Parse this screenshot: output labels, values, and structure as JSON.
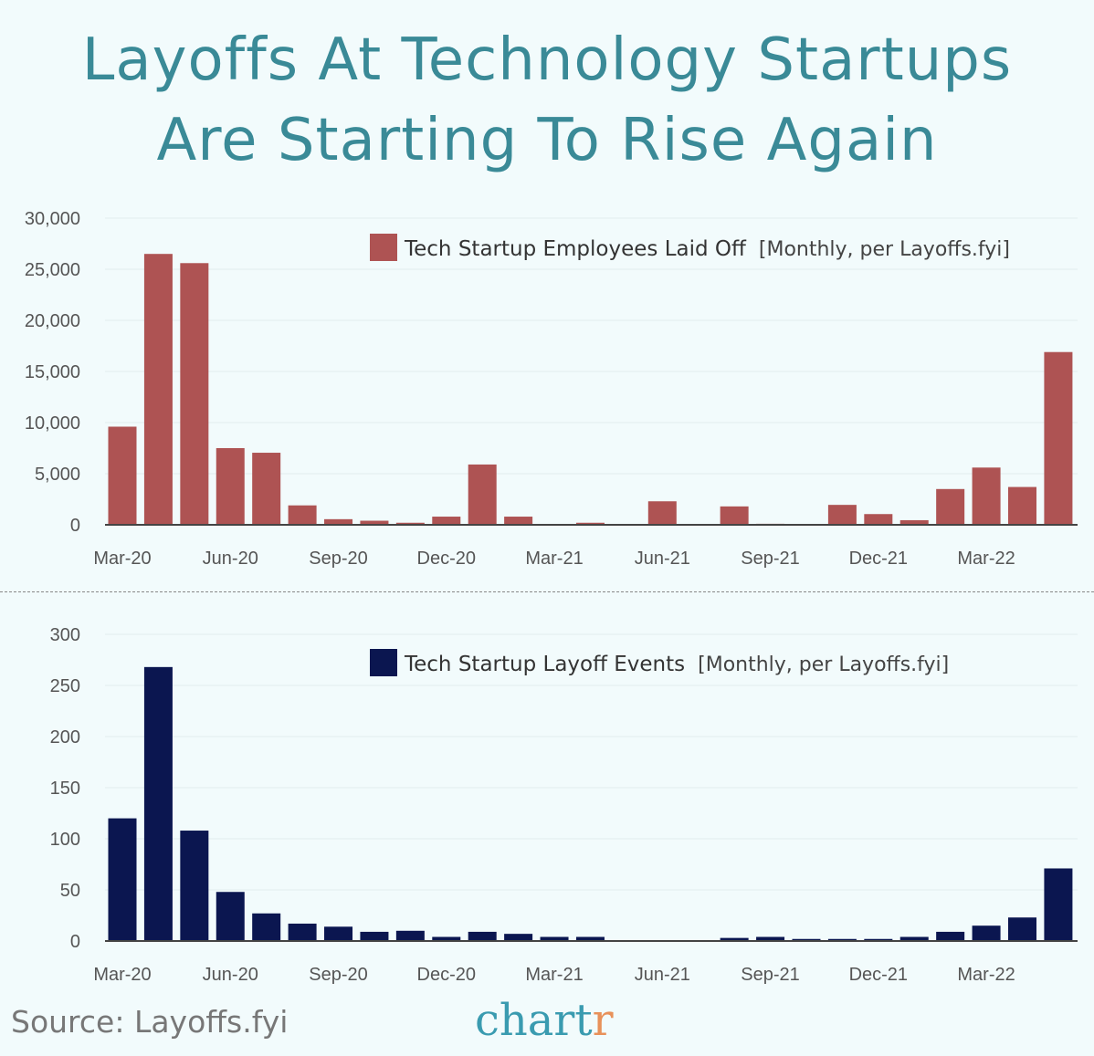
{
  "title_line1": "Layoffs At Technology Startups",
  "title_line2": "Are Starting To Rise Again",
  "source": "Source: Layoffs.fyi",
  "logo": {
    "main": "chart",
    "accent": "r"
  },
  "chart_data": [
    {
      "type": "bar",
      "legend": "Tech Startup Employees Laid Off",
      "legend_note": "[Monthly, per Layoffs.fyi]",
      "legend_placement": "top-right",
      "color": "#ae5353",
      "grid": true,
      "ylim": [
        0,
        30000
      ],
      "yticks": [
        "0",
        "5,000",
        "10,000",
        "15,000",
        "20,000",
        "25,000",
        "30,000"
      ],
      "xtick_labels": [
        "Mar-20",
        "Jun-20",
        "Sep-20",
        "Dec-20",
        "Mar-21",
        "Jun-21",
        "Sep-21",
        "Dec-21",
        "Mar-22"
      ],
      "categories": [
        "Mar-20",
        "Apr-20",
        "May-20",
        "Jun-20",
        "Jul-20",
        "Aug-20",
        "Sep-20",
        "Oct-20",
        "Nov-20",
        "Dec-20",
        "Jan-21",
        "Feb-21",
        "Mar-21",
        "Apr-21",
        "May-21",
        "Jun-21",
        "Jul-21",
        "Aug-21",
        "Sep-21",
        "Oct-21",
        "Nov-21",
        "Dec-21",
        "Jan-22",
        "Feb-22",
        "Mar-22",
        "Apr-22",
        "May-22"
      ],
      "values": [
        9600,
        26500,
        25600,
        7500,
        7050,
        1900,
        550,
        400,
        200,
        800,
        5900,
        800,
        0,
        200,
        0,
        2300,
        0,
        1800,
        100,
        0,
        1950,
        1050,
        450,
        3500,
        5600,
        3700,
        16900
      ]
    },
    {
      "type": "bar",
      "legend": "Tech Startup Layoff Events",
      "legend_note": "[Monthly, per Layoffs.fyi]",
      "legend_placement": "top-right",
      "color": "#0b1650",
      "grid": true,
      "ylim": [
        0,
        300
      ],
      "yticks": [
        "0",
        "50",
        "100",
        "150",
        "200",
        "250",
        "300"
      ],
      "xtick_labels": [
        "Mar-20",
        "Jun-20",
        "Sep-20",
        "Dec-20",
        "Mar-21",
        "Jun-21",
        "Sep-21",
        "Dec-21",
        "Mar-22"
      ],
      "categories": [
        "Mar-20",
        "Apr-20",
        "May-20",
        "Jun-20",
        "Jul-20",
        "Aug-20",
        "Sep-20",
        "Oct-20",
        "Nov-20",
        "Dec-20",
        "Jan-21",
        "Feb-21",
        "Mar-21",
        "Apr-21",
        "May-21",
        "Jun-21",
        "Jul-21",
        "Aug-21",
        "Sep-21",
        "Oct-21",
        "Nov-21",
        "Dec-21",
        "Jan-22",
        "Feb-22",
        "Mar-22",
        "Apr-22",
        "May-22"
      ],
      "values": [
        120,
        268,
        108,
        48,
        27,
        17,
        14,
        9,
        10,
        4,
        9,
        7,
        4,
        4,
        0,
        0,
        0,
        3,
        4,
        2,
        2,
        2,
        4,
        9,
        15,
        23,
        71
      ]
    }
  ]
}
